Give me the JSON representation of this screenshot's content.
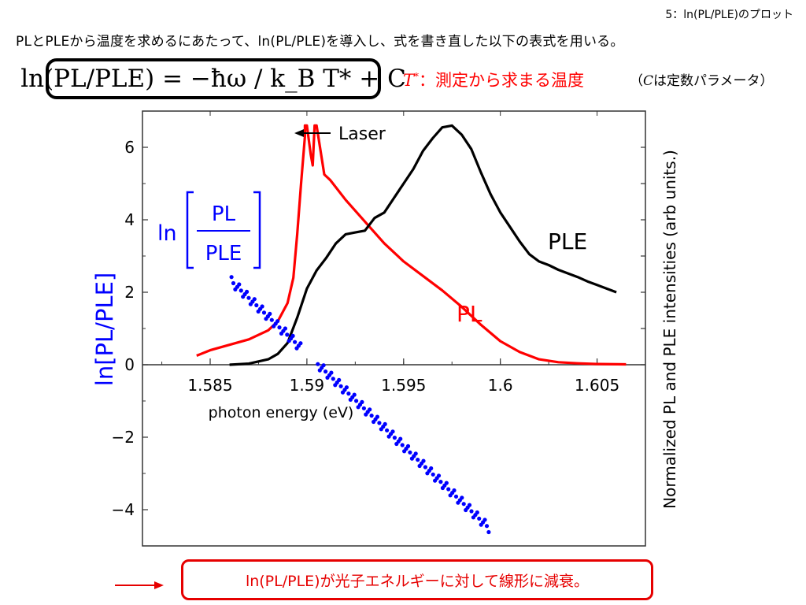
{
  "slide_number": "5：ln(PL/PLE)のプロット",
  "intro_text": "PLとPLEから温度を求めるにあたって、ln(PL/PLE)を導入し、式を書き直した以下の表式を用いる。",
  "formula": "ln(PL/PLE) = −ħω / k_B T* + C",
  "tstar_note": {
    "symbol": "T",
    "sup": "*",
    "text": "：測定から求まる温度"
  },
  "c_note": {
    "open": "（",
    "symbol": "C",
    "text": "は定数パラメータ）"
  },
  "conclusion": "ln(PL/PLE)が光子エネルギーに対して線形に減衰。",
  "colors": {
    "pl": "#ff0000",
    "ple": "#000000",
    "ln": "#0000ff",
    "accent": "#e60000"
  },
  "chart_data": {
    "type": "line",
    "xlabel": "photon energy (eV)",
    "ylabel_left": "ln[PL/PLE]",
    "ylabel_right": "Normalized PL and PLE intensities (arb units.)",
    "xlim": [
      1.5815,
      1.6075
    ],
    "ylim": [
      -5.0,
      7.0
    ],
    "x_ticks": [
      1.585,
      1.59,
      1.595,
      1.6,
      1.605
    ],
    "x_tick_labels": [
      "1.585",
      "1.59",
      "1.595",
      "1.6",
      "1.605"
    ],
    "y_ticks": [
      -4,
      -2,
      0,
      2,
      4,
      6
    ],
    "y_tick_labels": [
      "−4",
      "−2",
      "0",
      "2",
      "4",
      "6"
    ],
    "annotations": {
      "laser": "Laser",
      "ple": "PLE",
      "pl": "PL",
      "ratio_prefix": "ln",
      "ratio_num": "PL",
      "ratio_den": "PLE"
    },
    "series": [
      {
        "name": "PL",
        "style": "line",
        "x": [
          1.5843,
          1.585,
          1.586,
          1.587,
          1.588,
          1.5885,
          1.589,
          1.5893,
          1.5895,
          1.5897,
          1.5899,
          1.5899,
          1.59,
          1.5902,
          1.5903,
          1.5904,
          1.5905,
          1.5909,
          1.5912,
          1.592,
          1.593,
          1.594,
          1.595,
          1.596,
          1.597,
          1.598,
          1.599,
          1.6,
          1.601,
          1.602,
          1.603,
          1.604,
          1.605,
          1.6065
        ],
        "y": [
          0.25,
          0.4,
          0.55,
          0.7,
          0.95,
          1.2,
          1.7,
          2.4,
          3.6,
          5.0,
          6.3,
          6.6,
          6.6,
          5.8,
          5.5,
          6.6,
          6.6,
          5.25,
          5.1,
          4.55,
          3.95,
          3.35,
          2.85,
          2.45,
          2.05,
          1.6,
          1.1,
          0.65,
          0.35,
          0.15,
          0.07,
          0.04,
          0.02,
          0.01
        ]
      },
      {
        "name": "PLE",
        "style": "line",
        "x": [
          1.586,
          1.587,
          1.588,
          1.5885,
          1.589,
          1.5895,
          1.59,
          1.5905,
          1.591,
          1.5915,
          1.592,
          1.5925,
          1.593,
          1.5935,
          1.594,
          1.5945,
          1.595,
          1.5955,
          1.596,
          1.5965,
          1.597,
          1.5975,
          1.598,
          1.5985,
          1.599,
          1.5995,
          1.6,
          1.6005,
          1.601,
          1.6015,
          1.602,
          1.6025,
          1.603,
          1.6035,
          1.604,
          1.6045,
          1.605,
          1.6055,
          1.606
        ],
        "y": [
          0.0,
          0.03,
          0.15,
          0.3,
          0.6,
          1.3,
          2.1,
          2.6,
          2.95,
          3.35,
          3.6,
          3.65,
          3.7,
          4.05,
          4.2,
          4.6,
          5.0,
          5.4,
          5.9,
          6.25,
          6.55,
          6.6,
          6.35,
          5.95,
          5.3,
          4.7,
          4.2,
          3.8,
          3.4,
          3.05,
          2.85,
          2.75,
          2.62,
          2.52,
          2.42,
          2.3,
          2.2,
          2.1,
          2.0
        ]
      },
      {
        "name": "ln[PL/PLE]",
        "style": "scatter",
        "x0": 1.5861,
        "x1": 1.5994,
        "y0": 2.3,
        "y1": -4.5,
        "n": 135,
        "gap": [
          1.5897,
          1.5905
        ]
      }
    ]
  }
}
